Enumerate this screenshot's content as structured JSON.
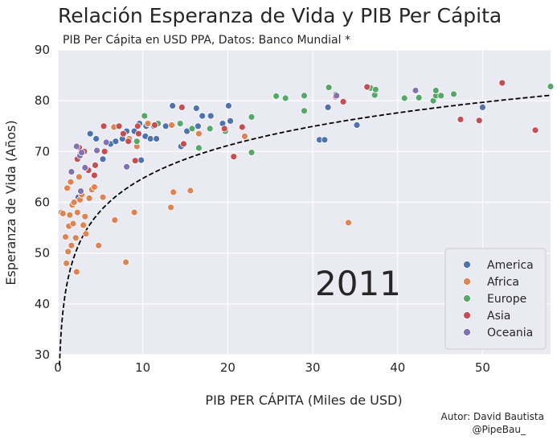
{
  "chart_data": {
    "type": "scatter",
    "title": "Relación Esperanza de Vida y PIB Per Cápita",
    "subtitle": "PIB Per Cápita en USD PPA, Datos: Banco Mundial *",
    "xlabel": "PIB PER CÁPITA (Miles de USD)",
    "ylabel": "Esperanza de Vida (Años)",
    "xlim": [
      0,
      58
    ],
    "ylim": [
      30,
      90
    ],
    "xticks": [
      0,
      10,
      20,
      30,
      40,
      50
    ],
    "yticks": [
      30,
      40,
      50,
      60,
      70,
      80,
      90
    ],
    "grid": true,
    "legend_position": "bottom-right",
    "year_label": "2011",
    "credit": [
      "Autor: David Bautista",
      "@PipeBau_"
    ],
    "trendline": {
      "style": "dashed",
      "color": "#000000",
      "form": "logarithmic",
      "a": 43.3,
      "b": 9.3
    },
    "series": [
      {
        "name": "America",
        "color": "#4c72b0",
        "points": [
          [
            2.4,
            61.0
          ],
          [
            3.8,
            73.5
          ],
          [
            4.5,
            72.5
          ],
          [
            5.3,
            68.5
          ],
          [
            6.2,
            71.5
          ],
          [
            6.8,
            72.0
          ],
          [
            7.6,
            72.5
          ],
          [
            8.1,
            74.0
          ],
          [
            9.0,
            74.0
          ],
          [
            9.6,
            75.5
          ],
          [
            9.8,
            68.3
          ],
          [
            10.3,
            73.0
          ],
          [
            10.4,
            75.0
          ],
          [
            10.9,
            72.5
          ],
          [
            11.3,
            75.0
          ],
          [
            11.6,
            72.5
          ],
          [
            12.7,
            75.0
          ],
          [
            13.5,
            79.0
          ],
          [
            14.5,
            71.0
          ],
          [
            15.2,
            74.0
          ],
          [
            16.3,
            78.5
          ],
          [
            16.5,
            75.0
          ],
          [
            17.0,
            77.0
          ],
          [
            18.0,
            77.0
          ],
          [
            19.4,
            75.5
          ],
          [
            20.1,
            79.0
          ],
          [
            20.3,
            76.0
          ],
          [
            30.8,
            72.3
          ],
          [
            31.4,
            72.3
          ],
          [
            31.8,
            78.7
          ],
          [
            35.2,
            75.2
          ],
          [
            50.0,
            78.7
          ]
        ]
      },
      {
        "name": "Africa",
        "color": "#dd8452",
        "points": [
          [
            0.4,
            58.0
          ],
          [
            0.6,
            57.8
          ],
          [
            0.9,
            53.2
          ],
          [
            1.0,
            48.0
          ],
          [
            1.1,
            62.8
          ],
          [
            1.2,
            50.3
          ],
          [
            1.3,
            55.3
          ],
          [
            1.4,
            57.5
          ],
          [
            1.5,
            64.0
          ],
          [
            1.6,
            51.5
          ],
          [
            1.7,
            59.5
          ],
          [
            1.8,
            55.8
          ],
          [
            1.9,
            60.0
          ],
          [
            2.1,
            53.0
          ],
          [
            2.2,
            46.3
          ],
          [
            2.3,
            58.0
          ],
          [
            2.5,
            65.0
          ],
          [
            2.6,
            60.5
          ],
          [
            2.8,
            61.5
          ],
          [
            3.0,
            55.5
          ],
          [
            3.2,
            57.2
          ],
          [
            3.3,
            53.8
          ],
          [
            3.7,
            60.8
          ],
          [
            4.0,
            62.5
          ],
          [
            4.3,
            63.0
          ],
          [
            4.8,
            51.5
          ],
          [
            5.3,
            61.0
          ],
          [
            5.6,
            70.0
          ],
          [
            6.6,
            74.8
          ],
          [
            6.7,
            56.5
          ],
          [
            8.0,
            48.2
          ],
          [
            8.4,
            72.5
          ],
          [
            9.0,
            58.0
          ],
          [
            9.3,
            71.0
          ],
          [
            10.6,
            75.5
          ],
          [
            13.3,
            59.0
          ],
          [
            13.4,
            75.2
          ],
          [
            13.6,
            62.0
          ],
          [
            15.6,
            62.3
          ],
          [
            16.6,
            73.5
          ],
          [
            22.0,
            73.0
          ],
          [
            34.2,
            56.0
          ]
        ]
      },
      {
        "name": "Europe",
        "color": "#55a868",
        "points": [
          [
            9.3,
            72.0
          ],
          [
            10.2,
            77.0
          ],
          [
            11.8,
            75.5
          ],
          [
            14.4,
            75.5
          ],
          [
            15.8,
            74.5
          ],
          [
            16.6,
            70.7
          ],
          [
            17.9,
            74.5
          ],
          [
            19.7,
            74.0
          ],
          [
            22.8,
            69.8
          ],
          [
            22.8,
            76.8
          ],
          [
            25.7,
            80.9
          ],
          [
            26.8,
            80.5
          ],
          [
            29.0,
            81.0
          ],
          [
            29.0,
            78.0
          ],
          [
            31.9,
            82.6
          ],
          [
            32.7,
            81.2
          ],
          [
            36.8,
            82.5
          ],
          [
            37.3,
            81.1
          ],
          [
            37.4,
            82.2
          ],
          [
            40.8,
            80.5
          ],
          [
            42.5,
            80.6
          ],
          [
            44.2,
            80.0
          ],
          [
            44.5,
            81.0
          ],
          [
            44.5,
            82.0
          ],
          [
            45.1,
            81.0
          ],
          [
            46.6,
            81.3
          ],
          [
            58.0,
            82.8
          ]
        ]
      },
      {
        "name": "Asia",
        "color": "#c44e52",
        "points": [
          [
            2.3,
            68.5
          ],
          [
            2.6,
            69.5
          ],
          [
            2.5,
            70.8
          ],
          [
            3.1,
            70.0
          ],
          [
            3.6,
            66.3
          ],
          [
            4.3,
            65.3
          ],
          [
            4.4,
            67.3
          ],
          [
            5.4,
            75.0
          ],
          [
            5.5,
            70.0
          ],
          [
            7.2,
            75.0
          ],
          [
            7.7,
            73.5
          ],
          [
            8.3,
            72.0
          ],
          [
            9.1,
            68.2
          ],
          [
            9.4,
            75.0
          ],
          [
            9.5,
            73.5
          ],
          [
            11.4,
            75.2
          ],
          [
            14.6,
            78.7
          ],
          [
            14.8,
            71.5
          ],
          [
            19.6,
            74.5
          ],
          [
            20.7,
            69.0
          ],
          [
            21.7,
            74.8
          ],
          [
            32.7,
            80.8
          ],
          [
            33.6,
            79.8
          ],
          [
            36.4,
            82.7
          ],
          [
            47.4,
            76.3
          ],
          [
            49.6,
            76.1
          ],
          [
            52.3,
            83.5
          ],
          [
            56.2,
            74.2
          ]
        ]
      },
      {
        "name": "Oceania",
        "color": "#8172b3",
        "points": [
          [
            1.6,
            66.0
          ],
          [
            2.2,
            71.0
          ],
          [
            2.6,
            69.2
          ],
          [
            2.8,
            69.8
          ],
          [
            2.7,
            62.2
          ],
          [
            3.2,
            66.8
          ],
          [
            4.6,
            70.2
          ],
          [
            5.7,
            71.8
          ],
          [
            8.1,
            67.0
          ],
          [
            32.8,
            81.0
          ],
          [
            42.1,
            82.0
          ]
        ]
      }
    ]
  }
}
